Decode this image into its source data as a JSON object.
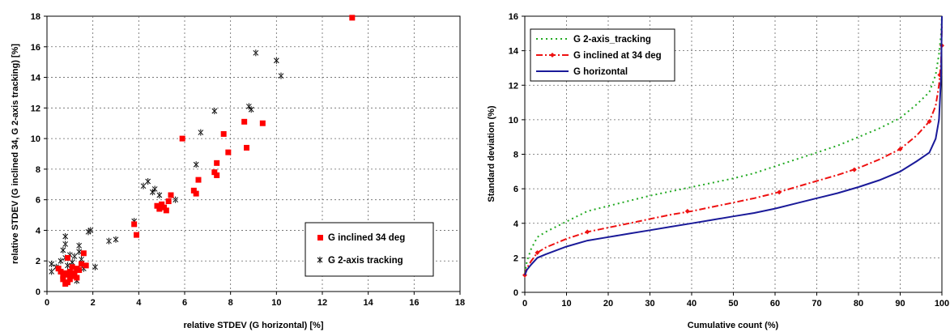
{
  "chart_data": [
    {
      "type": "scatter",
      "xlabel": "relative STDEV (G horizontal) [%]",
      "ylabel": "relative STDEV (G inclined 34, G 2-axis tracking) [%]",
      "xlim": [
        0,
        18
      ],
      "ylim": [
        0,
        18
      ],
      "xticks": [
        0,
        2,
        4,
        6,
        8,
        10,
        12,
        14,
        16,
        18
      ],
      "yticks": [
        0,
        2,
        4,
        6,
        8,
        10,
        12,
        14,
        16,
        18
      ],
      "grid": "dotted",
      "legend_position": "bottom-right",
      "series": [
        {
          "name": "G inclined 34 deg",
          "marker": "square",
          "color": "#ff0000",
          "points": [
            [
              0.5,
              1.5
            ],
            [
              0.6,
              1.3
            ],
            [
              0.7,
              1.0
            ],
            [
              0.7,
              0.8
            ],
            [
              0.8,
              0.5
            ],
            [
              0.8,
              1.2
            ],
            [
              0.9,
              0.6
            ],
            [
              0.9,
              1.1
            ],
            [
              1.0,
              0.8
            ],
            [
              1.0,
              1.3
            ],
            [
              1.1,
              1.0
            ],
            [
              1.2,
              1.2
            ],
            [
              1.3,
              1.5
            ],
            [
              1.3,
              0.9
            ],
            [
              1.4,
              1.4
            ],
            [
              1.5,
              1.8
            ],
            [
              1.6,
              2.5
            ],
            [
              1.7,
              1.7
            ],
            [
              0.9,
              2.2
            ],
            [
              1.1,
              1.6
            ],
            [
              3.9,
              3.7
            ],
            [
              3.8,
              4.4
            ],
            [
              4.8,
              5.6
            ],
            [
              4.9,
              5.4
            ],
            [
              5.0,
              5.7
            ],
            [
              5.1,
              5.5
            ],
            [
              5.2,
              5.3
            ],
            [
              5.3,
              5.9
            ],
            [
              5.4,
              6.3
            ],
            [
              5.9,
              10.0
            ],
            [
              6.4,
              6.6
            ],
            [
              6.5,
              6.4
            ],
            [
              6.6,
              7.3
            ],
            [
              7.3,
              7.8
            ],
            [
              7.4,
              7.6
            ],
            [
              7.4,
              8.4
            ],
            [
              7.7,
              10.3
            ],
            [
              7.9,
              9.1
            ],
            [
              8.6,
              11.1
            ],
            [
              8.7,
              9.4
            ],
            [
              9.4,
              11.0
            ],
            [
              13.3,
              17.9
            ]
          ]
        },
        {
          "name": "G 2-axis tracking",
          "marker": "asterisk-x",
          "color": "#000000",
          "points": [
            [
              0.2,
              1.8
            ],
            [
              0.2,
              1.3
            ],
            [
              0.4,
              1.6
            ],
            [
              0.6,
              2.0
            ],
            [
              0.7,
              2.7
            ],
            [
              0.8,
              3.1
            ],
            [
              0.8,
              3.6
            ],
            [
              0.8,
              2.2
            ],
            [
              0.9,
              1.7
            ],
            [
              1.0,
              2.4
            ],
            [
              1.1,
              1.9
            ],
            [
              1.2,
              2.3
            ],
            [
              1.3,
              0.7
            ],
            [
              1.4,
              2.6
            ],
            [
              1.4,
              3.0
            ],
            [
              1.5,
              2.1
            ],
            [
              1.6,
              1.5
            ],
            [
              1.8,
              3.9
            ],
            [
              1.9,
              4.0
            ],
            [
              2.1,
              1.6
            ],
            [
              2.7,
              3.3
            ],
            [
              3.0,
              3.4
            ],
            [
              3.8,
              4.6
            ],
            [
              4.2,
              6.9
            ],
            [
              4.4,
              7.2
            ],
            [
              4.6,
              6.5
            ],
            [
              4.7,
              6.7
            ],
            [
              4.9,
              6.3
            ],
            [
              5.6,
              6.0
            ],
            [
              6.5,
              8.3
            ],
            [
              6.7,
              10.4
            ],
            [
              7.3,
              11.8
            ],
            [
              8.8,
              12.1
            ],
            [
              8.9,
              11.9
            ],
            [
              9.1,
              15.6
            ],
            [
              10.0,
              15.1
            ],
            [
              10.2,
              14.1
            ]
          ]
        }
      ]
    },
    {
      "type": "line",
      "xlabel": "Cumulative count (%)",
      "ylabel": "Standard deviation (%)",
      "xlim": [
        0,
        100
      ],
      "ylim": [
        0,
        16
      ],
      "xticks": [
        0,
        10,
        20,
        30,
        40,
        50,
        60,
        70,
        80,
        90,
        100
      ],
      "yticks": [
        0,
        2,
        4,
        6,
        8,
        10,
        12,
        14,
        16
      ],
      "grid": "dotted",
      "legend_position": "top-left",
      "series": [
        {
          "name": "G 2-axis_tracking",
          "color": "#22aa22",
          "dash": "dotted",
          "marker": "none",
          "points": [
            [
              0,
              1.1
            ],
            [
              0.5,
              1.8
            ],
            [
              1.5,
              2.5
            ],
            [
              3,
              3.2
            ],
            [
              5,
              3.5
            ],
            [
              10,
              4.1
            ],
            [
              15,
              4.7
            ],
            [
              20,
              5.0
            ],
            [
              25,
              5.3
            ],
            [
              30,
              5.6
            ],
            [
              35,
              5.85
            ],
            [
              40,
              6.1
            ],
            [
              45,
              6.35
            ],
            [
              50,
              6.6
            ],
            [
              55,
              6.9
            ],
            [
              60,
              7.3
            ],
            [
              65,
              7.7
            ],
            [
              70,
              8.1
            ],
            [
              75,
              8.5
            ],
            [
              80,
              9.0
            ],
            [
              85,
              9.5
            ],
            [
              90,
              10.1
            ],
            [
              94,
              10.9
            ],
            [
              97,
              11.6
            ],
            [
              98.5,
              12.6
            ],
            [
              99.3,
              13.8
            ],
            [
              99.8,
              15.0
            ],
            [
              100,
              16.0
            ]
          ]
        },
        {
          "name": "G inclined at 34 deg",
          "color": "#ee1111",
          "dash": "dashdot",
          "marker": "diamond",
          "points": [
            [
              0,
              1.0
            ],
            [
              0.5,
              1.4
            ],
            [
              1.5,
              1.8
            ],
            [
              3,
              2.3
            ],
            [
              5,
              2.6
            ],
            [
              10,
              3.1
            ],
            [
              15,
              3.5
            ],
            [
              20,
              3.75
            ],
            [
              25,
              4.0
            ],
            [
              30,
              4.25
            ],
            [
              35,
              4.5
            ],
            [
              40,
              4.7
            ],
            [
              45,
              4.95
            ],
            [
              50,
              5.2
            ],
            [
              55,
              5.45
            ],
            [
              60,
              5.75
            ],
            [
              65,
              6.1
            ],
            [
              70,
              6.45
            ],
            [
              75,
              6.8
            ],
            [
              80,
              7.2
            ],
            [
              85,
              7.7
            ],
            [
              90,
              8.3
            ],
            [
              94,
              9.1
            ],
            [
              97,
              9.9
            ],
            [
              98.5,
              10.8
            ],
            [
              99.3,
              12.0
            ],
            [
              99.8,
              13.4
            ],
            [
              100,
              15.5
            ]
          ]
        },
        {
          "name": "G horizontal",
          "color": "#1a1a99",
          "dash": "solid",
          "marker": "none",
          "points": [
            [
              0,
              1.0
            ],
            [
              0.5,
              1.3
            ],
            [
              1.5,
              1.6
            ],
            [
              3,
              2.0
            ],
            [
              5,
              2.2
            ],
            [
              10,
              2.65
            ],
            [
              15,
              3.0
            ],
            [
              20,
              3.2
            ],
            [
              25,
              3.4
            ],
            [
              30,
              3.6
            ],
            [
              35,
              3.8
            ],
            [
              40,
              4.0
            ],
            [
              45,
              4.2
            ],
            [
              50,
              4.4
            ],
            [
              55,
              4.6
            ],
            [
              60,
              4.85
            ],
            [
              65,
              5.15
            ],
            [
              70,
              5.45
            ],
            [
              75,
              5.75
            ],
            [
              80,
              6.1
            ],
            [
              85,
              6.5
            ],
            [
              90,
              7.0
            ],
            [
              94,
              7.6
            ],
            [
              97,
              8.1
            ],
            [
              98.5,
              8.9
            ],
            [
              99.3,
              10.0
            ],
            [
              99.8,
              12.5
            ],
            [
              100,
              16.0
            ]
          ]
        }
      ]
    }
  ]
}
